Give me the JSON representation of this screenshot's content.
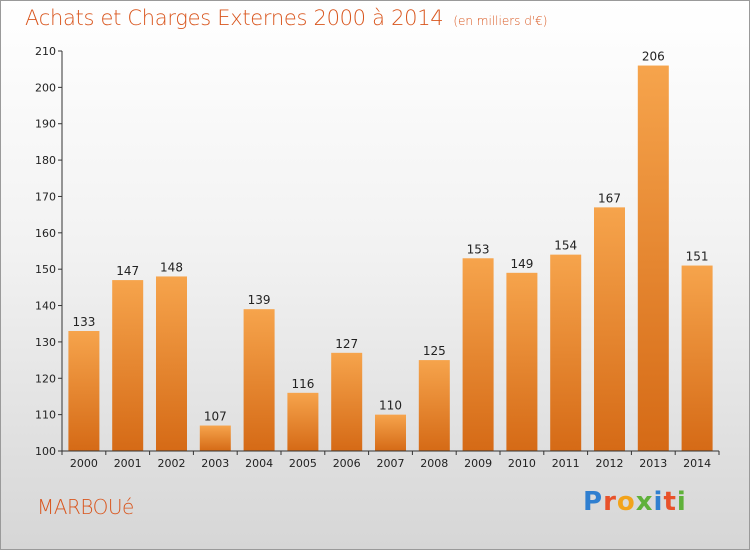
{
  "title": "Achats et Charges Externes 2000 à 2014",
  "unit": "(en milliers d'€)",
  "commune": "MARBOUé",
  "logo": {
    "letters": [
      "P",
      "r",
      "o",
      "x",
      "i",
      "t",
      "i"
    ],
    "colors": [
      "#2f7fd0",
      "#e8522a",
      "#f2a31b",
      "#5fb13a",
      "#2f7fd0",
      "#e8522a",
      "#5fb13a"
    ]
  },
  "colors": {
    "bar_top": "#f6a44c",
    "bar_bottom": "#d56a16",
    "accent": "#d9561e"
  },
  "chart_data": {
    "type": "bar",
    "categories": [
      "2000",
      "2001",
      "2002",
      "2003",
      "2004",
      "2005",
      "2006",
      "2007",
      "2008",
      "2009",
      "2010",
      "2011",
      "2012",
      "2013",
      "2014"
    ],
    "values": [
      133,
      147,
      148,
      107,
      139,
      116,
      127,
      110,
      125,
      153,
      149,
      154,
      167,
      206,
      151
    ],
    "title": "Achats et Charges Externes 2000 à 2014",
    "ylim": [
      100,
      210
    ],
    "yticks": [
      100,
      110,
      120,
      130,
      140,
      150,
      160,
      170,
      180,
      190,
      200,
      210
    ],
    "grid": false,
    "legend": "none"
  }
}
